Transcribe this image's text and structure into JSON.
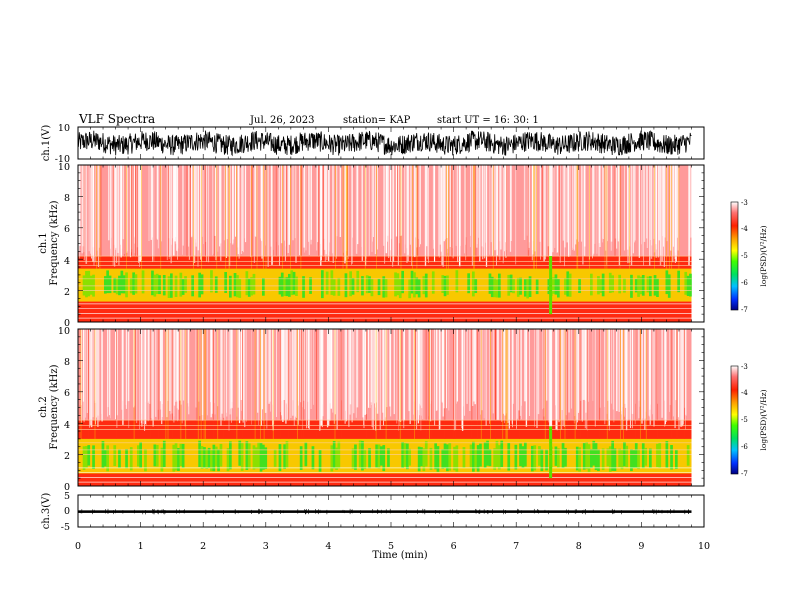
{
  "header": {
    "title": "VLF Spectra",
    "date": "Jul. 26, 2023",
    "station": "station= KAP",
    "start_ut": "start UT =  16: 30: 1"
  },
  "chart_data": [
    {
      "type": "line",
      "panel": "ch1-waveform",
      "ylabel": "ch.1(V)",
      "ylim": [
        -10,
        10
      ],
      "yticks": [
        "10",
        "-10"
      ],
      "xlim": [
        0,
        10
      ],
      "data_extent_x": [
        0,
        9.8
      ],
      "description_values": {
        "min": -10,
        "max": 10
      }
    },
    {
      "type": "heatmap",
      "panel": "ch1-spectrogram",
      "ylabel": "ch.1",
      "ylabel2": "Frequency (kHz)",
      "ylim": [
        0,
        10
      ],
      "yticks": [
        "0",
        "2",
        "4",
        "6",
        "8",
        "10"
      ],
      "xlim": [
        0,
        10
      ],
      "data_extent_x": [
        0,
        9.8
      ],
      "colorbar": {
        "label": "log(PSD)(V²/Hz)",
        "range": [
          -7,
          -3
        ],
        "ticks": [
          "-3",
          "-4",
          "-5",
          "-6",
          "-7"
        ],
        "colors": [
          "#000080",
          "#0030ff",
          "#00c0ff",
          "#00e060",
          "#40ff00",
          "#ffff00",
          "#ffa000",
          "#ff2000",
          "#ff7070",
          "#ffffff"
        ]
      },
      "features": {
        "bright_band_khz": [
          1.3,
          3.4
        ],
        "gap_minute": 7.55
      }
    },
    {
      "type": "heatmap",
      "panel": "ch2-spectrogram",
      "ylabel": "ch.2",
      "ylabel2": "Frequency (kHz)",
      "ylim": [
        0,
        10
      ],
      "yticks": [
        "0",
        "2",
        "4",
        "6",
        "8",
        "10"
      ],
      "xlim": [
        0,
        10
      ],
      "data_extent_x": [
        0,
        9.8
      ],
      "colorbar": {
        "label": "log(PSD)(V²/Hz)",
        "range": [
          -7,
          -3
        ],
        "ticks": [
          "-3",
          "-4",
          "-5",
          "-6",
          "-7"
        ],
        "colors": [
          "#000080",
          "#0030ff",
          "#00c0ff",
          "#00e060",
          "#40ff00",
          "#ffff00",
          "#ffa000",
          "#ff2000",
          "#ff7070",
          "#ffffff"
        ]
      },
      "features": {
        "bright_band_khz": [
          0.8,
          3.0
        ],
        "gap_minute": 7.55
      }
    },
    {
      "type": "line",
      "panel": "ch3-waveform",
      "ylabel": "ch.3(V)",
      "ylim": [
        -5,
        5
      ],
      "yticks": [
        "5",
        "0",
        "-5"
      ],
      "xlim": [
        0,
        10
      ],
      "data_extent_x": [
        0,
        9.8
      ],
      "description_values": {
        "min": -0.6,
        "max": 0.2
      }
    }
  ],
  "x_axis": {
    "label": "Time (min)",
    "ticks": [
      "0",
      "1",
      "2",
      "3",
      "4",
      "5",
      "6",
      "7",
      "8",
      "9",
      "10"
    ]
  }
}
